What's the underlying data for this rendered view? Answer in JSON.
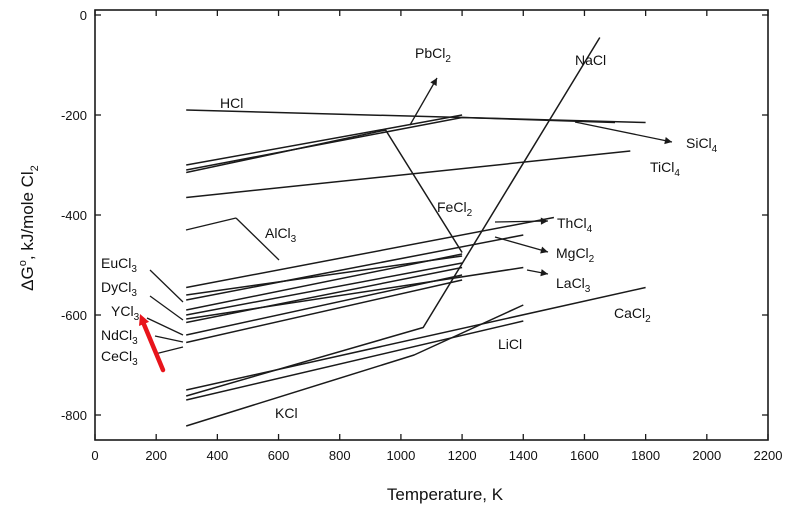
{
  "chart_data": {
    "type": "line",
    "title": "",
    "xlabel": "Temperature, K",
    "ylabel_parts": [
      "ΔG",
      "o",
      ", kJ/mole Cl",
      "2"
    ],
    "xlim": [
      0,
      2200
    ],
    "ylim": [
      -850,
      10
    ],
    "xticks": [
      0,
      200,
      400,
      600,
      800,
      1000,
      1200,
      1400,
      1600,
      1800,
      2000,
      2200
    ],
    "yticks": [
      0,
      -200,
      -400,
      -600,
      -800
    ],
    "grid": false,
    "series": [
      {
        "name": "HCl",
        "x": [
          298,
          1800
        ],
        "y": [
          -190,
          -215
        ]
      },
      {
        "name": "PbCl2",
        "x": [
          298,
          950,
          1200
        ],
        "y": [
          -300,
          -228,
          -200
        ]
      },
      {
        "name": "SiCl4",
        "x": [
          298,
          1200,
          1700
        ],
        "y": [
          -310,
          -205,
          -215
        ]
      },
      {
        "name": "TiCl4",
        "x": [
          298,
          1750
        ],
        "y": [
          -365,
          -272
        ]
      },
      {
        "name": "FeCl2",
        "x": [
          298,
          950,
          1200
        ],
        "y": [
          -315,
          -230,
          -475
        ]
      },
      {
        "name": "NaCl",
        "x": [
          298,
          1073,
          1650
        ],
        "y": [
          -762,
          -625,
          -45
        ]
      },
      {
        "name": "KCl",
        "x": [
          298,
          1043,
          1400
        ],
        "y": [
          -822,
          -680,
          -580
        ]
      },
      {
        "name": "AlCl3",
        "x": [
          298,
          1200
        ],
        "y": [
          -590,
          -478
        ]
      },
      {
        "name": "ThCl4",
        "x": [
          298,
          1500
        ],
        "y": [
          -545,
          -405
        ]
      },
      {
        "name": "MgCl2",
        "x": [
          298,
          1400
        ],
        "y": [
          -570,
          -440
        ]
      },
      {
        "name": "LaCl3",
        "x": [
          298,
          1400
        ],
        "y": [
          -608,
          -505
        ]
      },
      {
        "name": "EuCl3",
        "x": [
          298,
          1200
        ],
        "y": [
          -560,
          -482
        ]
      },
      {
        "name": "DyCl3",
        "x": [
          298,
          1200
        ],
        "y": [
          -600,
          -496
        ]
      },
      {
        "name": "YCl3",
        "x": [
          298,
          1200
        ],
        "y": [
          -615,
          -505
        ]
      },
      {
        "name": "NdCl3",
        "x": [
          298,
          1200
        ],
        "y": [
          -640,
          -520
        ]
      },
      {
        "name": "CeCl3",
        "x": [
          298,
          1200
        ],
        "y": [
          -655,
          -530
        ]
      },
      {
        "name": "CaCl2",
        "x": [
          298,
          1800
        ],
        "y": [
          -750,
          -545
        ]
      },
      {
        "name": "LiCl",
        "x": [
          298,
          1400
        ],
        "y": [
          -770,
          -612
        ]
      }
    ],
    "annotations": [
      {
        "base": "HCl",
        "sub": ""
      },
      {
        "base": "PbCl",
        "sub": "2"
      },
      {
        "base": "NaCl",
        "sub": ""
      },
      {
        "base": "SiCl",
        "sub": "4"
      },
      {
        "base": "TiCl",
        "sub": "4"
      },
      {
        "base": "FeCl",
        "sub": "2"
      },
      {
        "base": "AlCl",
        "sub": "3"
      },
      {
        "base": "ThCl",
        "sub": "4"
      },
      {
        "base": "MgCl",
        "sub": "2"
      },
      {
        "base": "LaCl",
        "sub": "3"
      },
      {
        "base": "CaCl",
        "sub": "2"
      },
      {
        "base": "LiCl",
        "sub": ""
      },
      {
        "base": "KCl",
        "sub": ""
      },
      {
        "base": "EuCl",
        "sub": "3"
      },
      {
        "base": "DyCl",
        "sub": "3"
      },
      {
        "base": "YCl",
        "sub": "3"
      },
      {
        "base": "NdCl",
        "sub": "3"
      },
      {
        "base": "CeCl",
        "sub": "3"
      }
    ],
    "highlight_color": "#e8141b",
    "line_color": "#1a1a1a"
  }
}
